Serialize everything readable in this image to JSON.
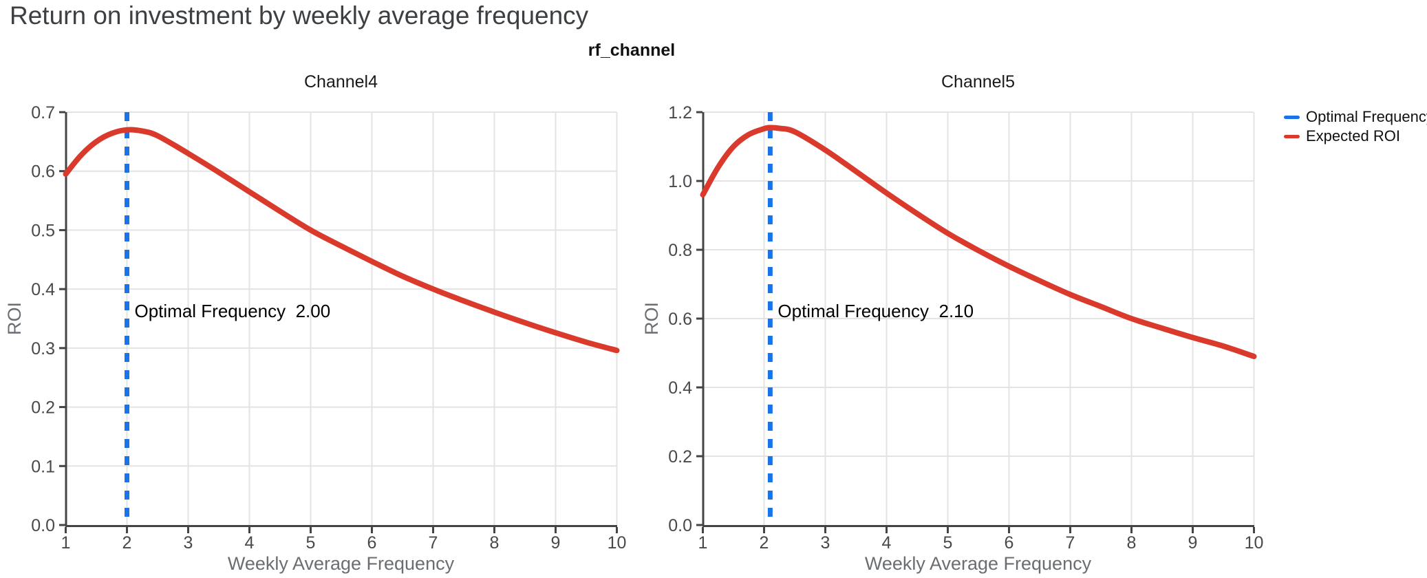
{
  "page": {
    "title": "Return on investment by weekly average frequency",
    "facet_label": "rf_channel"
  },
  "legend": {
    "position": "right",
    "items": [
      {
        "label": "Optimal Frequency",
        "color": "#1a73e8",
        "style": "dashed-rule"
      },
      {
        "label": "Expected ROI",
        "color": "#d93a2c",
        "style": "line"
      }
    ]
  },
  "colors": {
    "optimal_frequency_blue": "#1a73e8",
    "expected_roi_red": "#d93a2c",
    "gridline": "#e3e3e3",
    "axis_domain": "#444444",
    "tick_label": "#47494c",
    "axis_title": "#696e73",
    "facet_title": "#1a1a1a",
    "page_title": "#3c4043",
    "annotation_text": "#000000"
  },
  "chart_data": [
    {
      "type": "line",
      "title": "Channel4",
      "xlabel": "Weekly Average Frequency",
      "ylabel": "ROI",
      "xlim": [
        1,
        10
      ],
      "ylim": [
        0,
        0.7
      ],
      "x_ticks": [
        1,
        2,
        3,
        4,
        5,
        6,
        7,
        8,
        9,
        10
      ],
      "y_ticks": [
        0.0,
        0.1,
        0.2,
        0.3,
        0.4,
        0.5,
        0.6,
        0.7
      ],
      "grid": true,
      "optimal_frequency": 2.0,
      "annotation": {
        "label": "Optimal Frequency",
        "value": "2.00"
      },
      "series": [
        {
          "name": "Expected ROI",
          "x": [
            1,
            1.25,
            1.5,
            1.75,
            2,
            2.25,
            2.5,
            3,
            3.5,
            4,
            4.5,
            5,
            5.5,
            6,
            6.5,
            7,
            7.5,
            8,
            8.5,
            9,
            9.5,
            10
          ],
          "y": [
            0.595,
            0.627,
            0.65,
            0.664,
            0.67,
            0.668,
            0.66,
            0.63,
            0.598,
            0.565,
            0.532,
            0.5,
            0.473,
            0.447,
            0.422,
            0.4,
            0.38,
            0.361,
            0.343,
            0.326,
            0.31,
            0.296
          ]
        }
      ]
    },
    {
      "type": "line",
      "title": "Channel5",
      "xlabel": "Weekly Average Frequency",
      "ylabel": "ROI",
      "xlim": [
        1,
        10
      ],
      "ylim": [
        0,
        1.2
      ],
      "x_ticks": [
        1,
        2,
        3,
        4,
        5,
        6,
        7,
        8,
        9,
        10
      ],
      "y_ticks": [
        0.0,
        0.2,
        0.4,
        0.6,
        0.8,
        1.0,
        1.2
      ],
      "grid": true,
      "optimal_frequency": 2.1,
      "annotation": {
        "label": "Optimal Frequency",
        "value": "2.10"
      },
      "series": [
        {
          "name": "Expected ROI",
          "x": [
            1,
            1.25,
            1.5,
            1.75,
            2,
            2.1,
            2.25,
            2.5,
            3,
            3.5,
            4,
            4.5,
            5,
            5.5,
            6,
            6.5,
            7,
            7.5,
            8,
            8.5,
            9,
            9.5,
            10
          ],
          "y": [
            0.96,
            1.04,
            1.1,
            1.135,
            1.152,
            1.155,
            1.153,
            1.143,
            1.09,
            1.028,
            0.965,
            0.905,
            0.848,
            0.798,
            0.752,
            0.71,
            0.67,
            0.635,
            0.6,
            0.572,
            0.545,
            0.52,
            0.49
          ]
        }
      ]
    }
  ]
}
